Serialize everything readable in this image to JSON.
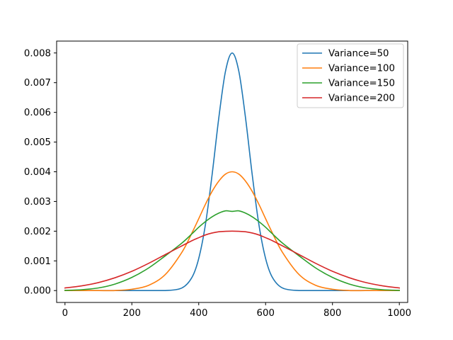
{
  "chart_data": {
    "type": "line",
    "title": "",
    "xlabel": "",
    "ylabel": "",
    "xlim": [
      -25,
      1025
    ],
    "ylim": [
      -0.0004,
      0.0084
    ],
    "grid": false,
    "legend_position": "top-right",
    "x_ticks": [
      0,
      200,
      400,
      600,
      800,
      1000
    ],
    "x_tick_labels": [
      "0",
      "200",
      "400",
      "600",
      "800",
      "1000"
    ],
    "y_ticks": [
      0,
      0.001,
      0.002,
      0.003,
      0.004,
      0.005,
      0.006,
      0.007,
      0.008
    ],
    "y_tick_labels": [
      "0.000",
      "0.001",
      "0.002",
      "0.003",
      "0.004",
      "0.005",
      "0.006",
      "0.007",
      "0.008"
    ],
    "x": [
      0,
      50,
      100,
      150,
      200,
      250,
      300,
      350,
      380,
      400,
      420,
      440,
      460,
      480,
      500,
      520,
      540,
      560,
      580,
      600,
      620,
      650,
      700,
      750,
      800,
      850,
      900,
      950,
      1000
    ],
    "series": [
      {
        "name": "Variance=50",
        "color": "#1f77b4",
        "values": [
          0,
          0,
          0,
          0,
          0,
          0,
          0,
          9e-05,
          0.00045,
          0.00108,
          0.00222,
          0.0039,
          0.00581,
          0.00738,
          0.008,
          0.00738,
          0.00581,
          0.0039,
          0.00222,
          0.00108,
          0.00045,
          9e-05,
          0,
          0,
          0,
          0,
          0,
          0,
          0
        ]
      },
      {
        "name": "Variance=100",
        "color": "#ff7f0e",
        "values": [
          0,
          0,
          0,
          2e-06,
          4.4e-05,
          0.000176,
          0.00054,
          0.001295,
          0.001947,
          0.00242,
          0.002904,
          0.00334,
          0.003685,
          0.003921,
          0.004,
          0.003921,
          0.003685,
          0.00334,
          0.002904,
          0.00242,
          0.001947,
          0.001295,
          0.00054,
          0.000176,
          4.4e-05,
          2e-06,
          0,
          0,
          0
        ]
      },
      {
        "name": "Variance=150",
        "color": "#2ca02c",
        "values": [
          7.6e-06,
          2.92e-05,
          8.85e-05,
          0.0002211,
          0.0004431,
          0.0007597,
          0.0011697,
          0.001603,
          0.0019144,
          0.0021322,
          0.0023217,
          0.002484,
          0.0026075,
          0.0026842,
          0.0026667,
          0.0026842,
          0.0026075,
          0.002484,
          0.0023217,
          0.0021322,
          0.0019144,
          0.001603,
          0.0011697,
          0.0007597,
          0.0004431,
          0.0002211,
          8.85e-05,
          2.92e-05,
          7.6e-06
        ]
      },
      {
        "name": "Variance=200",
        "color": "#d62728",
        "values": [
          8.76e-05,
          0.0001587,
          0.00027,
          0.000433,
          0.0006489,
          0.0009158,
          0.0012131,
          0.0015081,
          0.0016814,
          0.0017806,
          0.0018729,
          0.0019381,
          0.0019805,
          0.001995,
          0.002,
          0.001995,
          0.0019805,
          0.0019381,
          0.0018729,
          0.0017806,
          0.0016814,
          0.0015081,
          0.0012131,
          0.0009158,
          0.0006489,
          0.000433,
          0.00027,
          0.0001587,
          8.76e-05
        ]
      }
    ]
  }
}
